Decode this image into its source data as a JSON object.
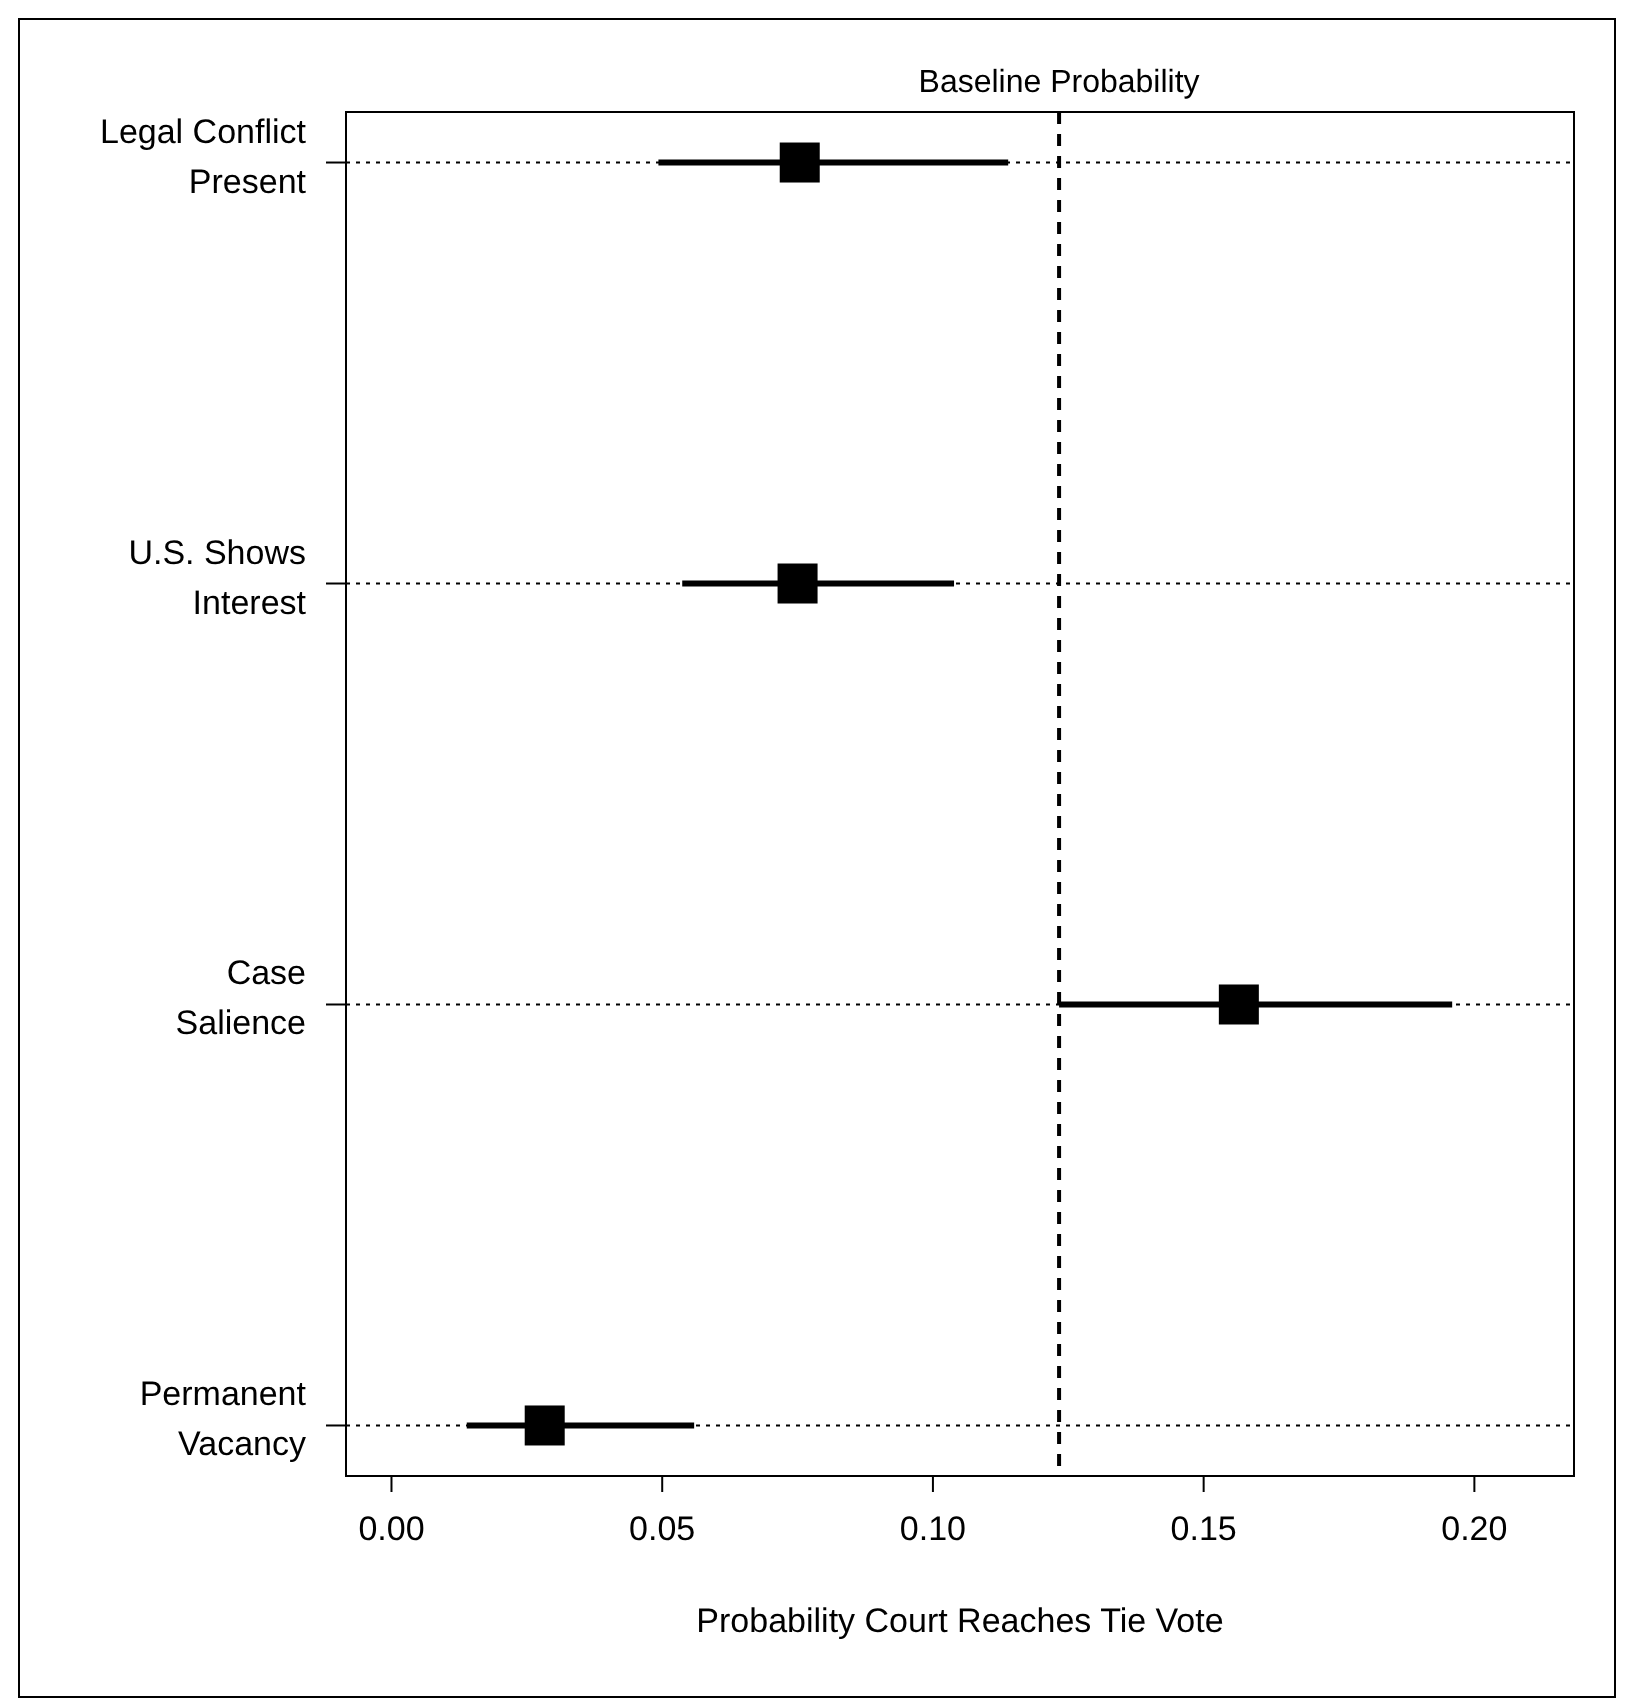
{
  "chart_data": {
    "type": "scatter",
    "orientation": "horizontal",
    "xlabel": "Probability Court Reaches Tie Vote",
    "categories": [
      "Legal Conflict\nPresent",
      "U.S. Shows\nInterest",
      "Case\nSalience",
      "Permanent\nVacancy"
    ],
    "values": [
      0.0754,
      0.075,
      0.1565,
      0.0283
    ],
    "errors": [
      [
        0.0493,
        0.1139
      ],
      [
        0.0537,
        0.1039
      ],
      [
        0.1233,
        0.1959
      ],
      [
        0.0139,
        0.0559
      ]
    ],
    "color": "#000000",
    "marker": "square",
    "grid": "y",
    "xlim": [
      -0.0084,
      0.2184
    ],
    "xticks": [
      {
        "value": 0,
        "label": "0.00"
      },
      {
        "value": 0.05,
        "label": "0.05"
      },
      {
        "value": 0.1,
        "label": "0.10"
      },
      {
        "value": 0.15,
        "label": "0.15"
      },
      {
        "value": 0.2,
        "label": "0.20"
      }
    ],
    "ref_lines": [
      {
        "axis": "x",
        "value": 0.1233,
        "label": "Baseline Probability",
        "line_style": "dashed",
        "color": "#000000"
      }
    ]
  }
}
